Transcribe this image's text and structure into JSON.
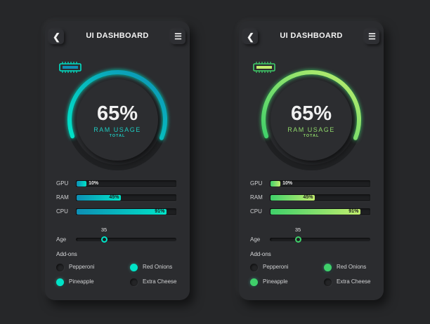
{
  "phones": [
    {
      "theme": "teal",
      "colors": {
        "accent_start": "#00e4c8",
        "accent_end": "#0e8fb5",
        "ring_bg": "#222326",
        "text_accent": "#1ecbc1"
      },
      "header": {
        "title": "UI DASHBOARD",
        "back_icon": "chevron-left-icon",
        "menu_icon": "hamburger-menu-icon"
      },
      "gauge": {
        "value_label": "65%",
        "percent": 0.65,
        "label": "RAM USAGE",
        "sublabel": "TOTAL",
        "icon": "ram-chip-icon"
      },
      "bars": [
        {
          "label": "GPU",
          "value": 10,
          "value_label": "10%"
        },
        {
          "label": "RAM",
          "value": 45,
          "value_label": "45%"
        },
        {
          "label": "CPU",
          "value": 91,
          "value_label": "91%"
        }
      ],
      "slider": {
        "label": "Age",
        "value": "35",
        "fraction": 0.28
      },
      "addons": {
        "title": "Add-ons",
        "options": [
          {
            "label": "Pepperoni",
            "checked": false
          },
          {
            "label": "Red Onions",
            "checked": true
          },
          {
            "label": "Pineapple",
            "checked": true
          },
          {
            "label": "Extra Cheese",
            "checked": false
          }
        ]
      }
    },
    {
      "theme": "green",
      "colors": {
        "accent_start": "#3fd06a",
        "accent_end": "#c2ee6e",
        "ring_bg": "#222326",
        "text_accent": "#8fd66a"
      },
      "header": {
        "title": "UI DASHBOARD",
        "back_icon": "chevron-left-icon",
        "menu_icon": "hamburger-menu-icon"
      },
      "gauge": {
        "value_label": "65%",
        "percent": 0.65,
        "label": "RAM USAGE",
        "sublabel": "TOTAL",
        "icon": "ram-chip-icon"
      },
      "bars": [
        {
          "label": "GPU",
          "value": 10,
          "value_label": "10%"
        },
        {
          "label": "RAM",
          "value": 45,
          "value_label": "45%"
        },
        {
          "label": "CPU",
          "value": 91,
          "value_label": "91%"
        }
      ],
      "slider": {
        "label": "Age",
        "value": "35",
        "fraction": 0.28
      },
      "addons": {
        "title": "Add-ons",
        "options": [
          {
            "label": "Pepperoni",
            "checked": false
          },
          {
            "label": "Red Onions",
            "checked": true
          },
          {
            "label": "Pineapple",
            "checked": true
          },
          {
            "label": "Extra Cheese",
            "checked": false
          }
        ]
      }
    }
  ]
}
